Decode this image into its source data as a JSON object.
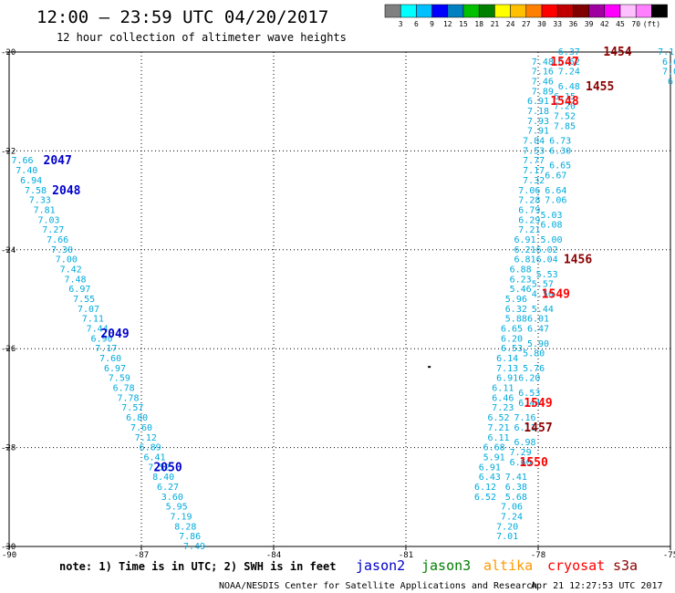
{
  "header": {
    "title": "12:00 – 23:59 UTC 04/20/2017",
    "subtitle": "12 hour collection of altimeter wave heights"
  },
  "color_scale": {
    "colors": [
      "#808080",
      "#00ffff",
      "#00bfff",
      "#0000ff",
      "#0080c0",
      "#00c000",
      "#008000",
      "#ffff00",
      "#ffc000",
      "#ff8000",
      "#ff0000",
      "#c00000",
      "#800000",
      "#a000a0",
      "#ff00ff",
      "#ffc0ff",
      "#ff80ff",
      "#000000"
    ],
    "labels": [
      "3",
      "6",
      "9",
      "12",
      "15",
      "18",
      "21",
      "24",
      "27",
      "30",
      "33",
      "36",
      "39",
      "42",
      "45",
      "70",
      "(ft)"
    ]
  },
  "footer": {
    "note": "note: 1) Time is in UTC; 2) SWH is in feet",
    "credit": "NOAA/NESDIS Center for Satellite Applications and Research",
    "timestamp": "Apr 21 12:27:53 UTC 2017"
  },
  "legend": [
    {
      "name": "jason2",
      "color": "#0000cc"
    },
    {
      "name": "jason3",
      "color": "#008000"
    },
    {
      "name": "altika",
      "color": "#ff9900"
    },
    {
      "name": "cryosat",
      "color": "#ff0000"
    },
    {
      "name": "s3a",
      "color": "#8b0000"
    }
  ],
  "chart_data": {
    "type": "scatter",
    "title": "12:00 – 23:59 UTC 04/20/2017",
    "subtitle": "12 hour collection of altimeter wave heights",
    "xlim": [
      -90,
      -75
    ],
    "ylim": [
      -30,
      -20
    ],
    "x_ticks": [
      -90,
      -87,
      -84,
      -81,
      -78,
      -75
    ],
    "y_ticks": [
      -20,
      -22,
      -24,
      -26,
      -28,
      -30
    ],
    "grid": true,
    "legend_position": "bottom",
    "swh_color": "#00aadd",
    "series": [
      {
        "name": "jason2",
        "color": "#0000cc",
        "time_labels": [
          {
            "label": "2047",
            "lon": -88.9,
            "lat": -22.2
          },
          {
            "label": "2048",
            "lon": -88.7,
            "lat": -22.8
          },
          {
            "label": "2049",
            "lon": -87.6,
            "lat": -25.7
          },
          {
            "label": "2050",
            "lon": -86.4,
            "lat": -28.4
          }
        ],
        "swh": [
          {
            "lon": -89.7,
            "lat": -22.2,
            "v": "7.66"
          },
          {
            "lon": -89.6,
            "lat": -22.4,
            "v": "7.40"
          },
          {
            "lon": -89.5,
            "lat": -22.6,
            "v": "6.94"
          },
          {
            "lon": -89.4,
            "lat": -22.8,
            "v": "7.58"
          },
          {
            "lon": -89.3,
            "lat": -23.0,
            "v": "7.33"
          },
          {
            "lon": -89.2,
            "lat": -23.2,
            "v": "7.81"
          },
          {
            "lon": -89.1,
            "lat": -23.4,
            "v": "7.03"
          },
          {
            "lon": -89.0,
            "lat": -23.6,
            "v": "7.27"
          },
          {
            "lon": -88.9,
            "lat": -23.8,
            "v": "7.66"
          },
          {
            "lon": -88.8,
            "lat": -24.0,
            "v": "7.30"
          },
          {
            "lon": -88.7,
            "lat": -24.2,
            "v": "7.00"
          },
          {
            "lon": -88.6,
            "lat": -24.4,
            "v": "7.42"
          },
          {
            "lon": -88.5,
            "lat": -24.6,
            "v": "7.48"
          },
          {
            "lon": -88.4,
            "lat": -24.8,
            "v": "6.97"
          },
          {
            "lon": -88.3,
            "lat": -25.0,
            "v": "7.55"
          },
          {
            "lon": -88.2,
            "lat": -25.2,
            "v": "7.07"
          },
          {
            "lon": -88.1,
            "lat": -25.4,
            "v": "7.11"
          },
          {
            "lon": -88.0,
            "lat": -25.6,
            "v": "7.44"
          },
          {
            "lon": -87.9,
            "lat": -25.8,
            "v": "6.90"
          },
          {
            "lon": -87.8,
            "lat": -26.0,
            "v": "7.17"
          },
          {
            "lon": -87.7,
            "lat": -26.2,
            "v": "7.60"
          },
          {
            "lon": -87.6,
            "lat": -26.4,
            "v": "6.97"
          },
          {
            "lon": -87.5,
            "lat": -26.6,
            "v": "7.59"
          },
          {
            "lon": -87.4,
            "lat": -26.8,
            "v": "6.78"
          },
          {
            "lon": -87.3,
            "lat": -27.0,
            "v": "7.78"
          },
          {
            "lon": -87.2,
            "lat": -27.2,
            "v": "7.57"
          },
          {
            "lon": -87.1,
            "lat": -27.4,
            "v": "6.80"
          },
          {
            "lon": -87.0,
            "lat": -27.6,
            "v": "7.60"
          },
          {
            "lon": -86.9,
            "lat": -27.8,
            "v": "7.12"
          },
          {
            "lon": -86.8,
            "lat": -28.0,
            "v": "6.89"
          },
          {
            "lon": -86.7,
            "lat": -28.2,
            "v": "6.41"
          },
          {
            "lon": -86.6,
            "lat": -28.4,
            "v": "7.52"
          },
          {
            "lon": -86.5,
            "lat": -28.6,
            "v": "8.40"
          },
          {
            "lon": -86.4,
            "lat": -28.8,
            "v": "6.27"
          },
          {
            "lon": -86.3,
            "lat": -29.0,
            "v": "3.60"
          },
          {
            "lon": -86.2,
            "lat": -29.2,
            "v": "5.95"
          },
          {
            "lon": -86.1,
            "lat": -29.4,
            "v": "7.19"
          },
          {
            "lon": -86.0,
            "lat": -29.6,
            "v": "8.28"
          },
          {
            "lon": -85.9,
            "lat": -29.8,
            "v": "7.86"
          },
          {
            "lon": -85.8,
            "lat": -30.0,
            "v": "7.49"
          }
        ]
      },
      {
        "name": "cryosat",
        "color": "#ff0000",
        "time_labels": [
          {
            "label": "1547",
            "lon": -77.4,
            "lat": -20.2
          },
          {
            "label": "1548",
            "lon": -77.4,
            "lat": -21.0
          },
          {
            "label": "1549",
            "lon": -77.6,
            "lat": -24.9
          },
          {
            "label": "1549",
            "lon": -78.0,
            "lat": -27.1
          },
          {
            "label": "1550",
            "lon": -78.1,
            "lat": -28.3
          }
        ],
        "swh": [
          {
            "lon": -77.9,
            "lat": -20.2,
            "v": "7.48"
          },
          {
            "lon": -77.9,
            "lat": -20.4,
            "v": "7.16"
          },
          {
            "lon": -77.9,
            "lat": -20.6,
            "v": "7.46"
          },
          {
            "lon": -77.9,
            "lat": -20.8,
            "v": "7.89"
          },
          {
            "lon": -78.0,
            "lat": -21.0,
            "v": "6.91"
          },
          {
            "lon": -78.0,
            "lat": -21.2,
            "v": "7.18"
          },
          {
            "lon": -78.0,
            "lat": -21.4,
            "v": "7.93"
          },
          {
            "lon": -78.0,
            "lat": -21.6,
            "v": "7.91"
          },
          {
            "lon": -78.1,
            "lat": -21.8,
            "v": "7.84"
          },
          {
            "lon": -78.1,
            "lat": -22.0,
            "v": "7.53"
          },
          {
            "lon": -78.1,
            "lat": -22.2,
            "v": "7.77"
          },
          {
            "lon": -78.1,
            "lat": -22.4,
            "v": "7.17"
          },
          {
            "lon": -78.1,
            "lat": -22.6,
            "v": "7.32"
          },
          {
            "lon": -78.2,
            "lat": -22.8,
            "v": "7.06"
          },
          {
            "lon": -78.2,
            "lat": -23.0,
            "v": "7.28"
          },
          {
            "lon": -78.2,
            "lat": -23.2,
            "v": "6.79"
          },
          {
            "lon": -78.2,
            "lat": -23.4,
            "v": "6.29"
          },
          {
            "lon": -78.2,
            "lat": -23.6,
            "v": "7.21"
          },
          {
            "lon": -78.3,
            "lat": -23.8,
            "v": "6.91"
          },
          {
            "lon": -78.3,
            "lat": -24.0,
            "v": "6.21"
          },
          {
            "lon": -78.3,
            "lat": -24.2,
            "v": "6.81"
          },
          {
            "lon": -78.4,
            "lat": -24.4,
            "v": "6.88"
          },
          {
            "lon": -78.4,
            "lat": -24.6,
            "v": "6.23"
          },
          {
            "lon": -78.4,
            "lat": -24.8,
            "v": "5.46"
          },
          {
            "lon": -78.5,
            "lat": -25.0,
            "v": "5.96"
          },
          {
            "lon": -78.5,
            "lat": -25.2,
            "v": "6.32"
          },
          {
            "lon": -78.5,
            "lat": -25.4,
            "v": "5.88"
          },
          {
            "lon": -78.6,
            "lat": -25.6,
            "v": "6.65"
          },
          {
            "lon": -78.6,
            "lat": -25.8,
            "v": "6.20"
          },
          {
            "lon": -78.6,
            "lat": -26.0,
            "v": "6.53"
          },
          {
            "lon": -78.7,
            "lat": -26.2,
            "v": "6.14"
          },
          {
            "lon": -78.7,
            "lat": -26.4,
            "v": "7.13"
          },
          {
            "lon": -78.7,
            "lat": -26.6,
            "v": "6.91"
          },
          {
            "lon": -78.8,
            "lat": -26.8,
            "v": "6.11"
          },
          {
            "lon": -78.8,
            "lat": -27.0,
            "v": "6.46"
          },
          {
            "lon": -78.8,
            "lat": -27.2,
            "v": "7.23"
          },
          {
            "lon": -78.9,
            "lat": -27.4,
            "v": "6.52"
          },
          {
            "lon": -78.9,
            "lat": -27.6,
            "v": "7.21"
          },
          {
            "lon": -78.9,
            "lat": -27.8,
            "v": "6.11"
          },
          {
            "lon": -79.0,
            "lat": -28.0,
            "v": "6.68"
          },
          {
            "lon": -79.0,
            "lat": -28.2,
            "v": "5.91"
          },
          {
            "lon": -79.1,
            "lat": -28.4,
            "v": "6.91"
          },
          {
            "lon": -79.1,
            "lat": -28.6,
            "v": "6.43"
          },
          {
            "lon": -79.2,
            "lat": -28.8,
            "v": "6.12"
          },
          {
            "lon": -79.2,
            "lat": -29.0,
            "v": "6.52"
          }
        ]
      },
      {
        "name": "s3a",
        "color": "#8b0000",
        "time_labels": [
          {
            "label": "1454",
            "lon": -76.2,
            "lat": -20.0
          },
          {
            "label": "1455",
            "lon": -76.6,
            "lat": -20.7
          },
          {
            "label": "1456",
            "lon": -77.1,
            "lat": -24.2
          },
          {
            "label": "1457",
            "lon": -78.0,
            "lat": -27.6
          }
        ],
        "swh": [
          {
            "lon": -77.3,
            "lat": -20.0,
            "v": "6.37"
          },
          {
            "lon": -77.3,
            "lat": -20.2,
            "v": "6.62"
          },
          {
            "lon": -77.3,
            "lat": -20.4,
            "v": "7.24"
          },
          {
            "lon": -77.3,
            "lat": -20.7,
            "v": "6.48"
          },
          {
            "lon": -77.4,
            "lat": -20.9,
            "v": "6.15"
          },
          {
            "lon": -77.4,
            "lat": -21.1,
            "v": "7.20"
          },
          {
            "lon": -77.4,
            "lat": -21.3,
            "v": "7.52"
          },
          {
            "lon": -77.4,
            "lat": -21.5,
            "v": "7.85"
          },
          {
            "lon": -77.5,
            "lat": -21.8,
            "v": "6.73"
          },
          {
            "lon": -77.5,
            "lat": -22.0,
            "v": "6.30"
          },
          {
            "lon": -77.5,
            "lat": -22.3,
            "v": "6.65"
          },
          {
            "lon": -77.6,
            "lat": -22.5,
            "v": "6.67"
          },
          {
            "lon": -77.6,
            "lat": -22.8,
            "v": "6.64"
          },
          {
            "lon": -77.6,
            "lat": -23.0,
            "v": "7.06"
          },
          {
            "lon": -77.7,
            "lat": -23.3,
            "v": "5.03"
          },
          {
            "lon": -77.7,
            "lat": -23.5,
            "v": "6.08"
          },
          {
            "lon": -77.7,
            "lat": -23.8,
            "v": "5.00"
          },
          {
            "lon": -77.8,
            "lat": -24.0,
            "v": "6.02"
          },
          {
            "lon": -77.8,
            "lat": -24.2,
            "v": "6.04"
          },
          {
            "lon": -77.8,
            "lat": -24.5,
            "v": "5.53"
          },
          {
            "lon": -77.9,
            "lat": -24.7,
            "v": "5.57"
          },
          {
            "lon": -77.9,
            "lat": -24.9,
            "v": "4.50"
          },
          {
            "lon": -77.9,
            "lat": -25.2,
            "v": "5.44"
          },
          {
            "lon": -78.0,
            "lat": -25.4,
            "v": "6.01"
          },
          {
            "lon": -78.0,
            "lat": -25.6,
            "v": "6.47"
          },
          {
            "lon": -78.0,
            "lat": -25.9,
            "v": "5.90"
          },
          {
            "lon": -78.1,
            "lat": -26.1,
            "v": "5.80"
          },
          {
            "lon": -78.1,
            "lat": -26.4,
            "v": "5.76"
          },
          {
            "lon": -78.2,
            "lat": -26.6,
            "v": "6.20"
          },
          {
            "lon": -78.2,
            "lat": -26.9,
            "v": "6.53"
          },
          {
            "lon": -78.2,
            "lat": -27.1,
            "v": "6.44"
          },
          {
            "lon": -78.3,
            "lat": -27.4,
            "v": "7.16"
          },
          {
            "lon": -78.3,
            "lat": -27.6,
            "v": "6.11"
          },
          {
            "lon": -78.3,
            "lat": -27.9,
            "v": "6.98"
          },
          {
            "lon": -78.4,
            "lat": -28.1,
            "v": "7.29"
          },
          {
            "lon": -78.4,
            "lat": -28.3,
            "v": "6.60"
          },
          {
            "lon": -78.5,
            "lat": -28.6,
            "v": "7.41"
          },
          {
            "lon": -78.5,
            "lat": -28.8,
            "v": "6.38"
          },
          {
            "lon": -78.5,
            "lat": -29.0,
            "v": "5.68"
          },
          {
            "lon": -78.6,
            "lat": -29.2,
            "v": "7.06"
          },
          {
            "lon": -78.6,
            "lat": -29.4,
            "v": "7.24"
          },
          {
            "lon": -78.7,
            "lat": -29.6,
            "v": "7.20"
          },
          {
            "lon": -78.7,
            "lat": -29.8,
            "v": "7.01"
          },
          {
            "lon": -75.1,
            "lat": -20.0,
            "v": "7.1"
          },
          {
            "lon": -75.0,
            "lat": -20.2,
            "v": "6.6"
          },
          {
            "lon": -75.0,
            "lat": -20.4,
            "v": "7.0"
          },
          {
            "lon": -75.0,
            "lat": -20.6,
            "v": "6"
          }
        ]
      }
    ]
  }
}
